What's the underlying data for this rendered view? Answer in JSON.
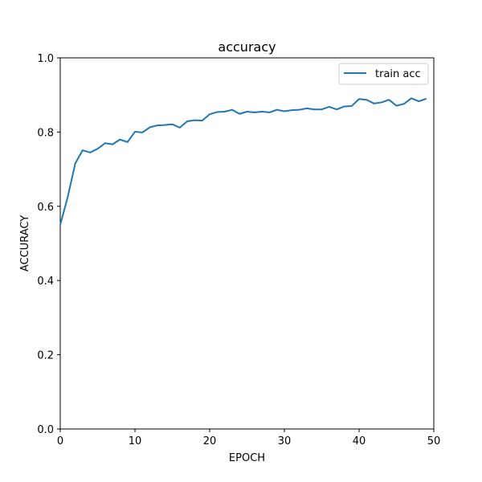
{
  "chart_data": {
    "type": "line",
    "title": "accuracy",
    "xlabel": "EPOCH",
    "ylabel": "ACCURACY",
    "xlim": [
      0,
      50
    ],
    "ylim": [
      0.0,
      1.0
    ],
    "xticks": [
      0,
      10,
      20,
      30,
      40,
      50
    ],
    "xtick_labels": [
      "0",
      "10",
      "20",
      "30",
      "40",
      "50"
    ],
    "yticks": [
      0.0,
      0.2,
      0.4,
      0.6,
      0.8,
      1.0
    ],
    "ytick_labels": [
      "0.0",
      "0.2",
      "0.4",
      "0.6",
      "0.8",
      "1.0"
    ],
    "grid": false,
    "legend_position": "top-right",
    "series": [
      {
        "name": "train acc",
        "color": "#1f77b4",
        "x": [
          0,
          1,
          2,
          3,
          4,
          5,
          6,
          7,
          8,
          9,
          10,
          11,
          12,
          13,
          14,
          15,
          16,
          17,
          18,
          19,
          20,
          21,
          22,
          23,
          24,
          25,
          26,
          27,
          28,
          29,
          30,
          31,
          32,
          33,
          34,
          35,
          36,
          37,
          38,
          39,
          40,
          41,
          42,
          43,
          44,
          45,
          46,
          47,
          48,
          49
        ],
        "y": [
          0.55,
          0.625,
          0.715,
          0.751,
          0.745,
          0.755,
          0.77,
          0.767,
          0.78,
          0.773,
          0.801,
          0.799,
          0.813,
          0.818,
          0.819,
          0.821,
          0.812,
          0.829,
          0.832,
          0.831,
          0.848,
          0.854,
          0.855,
          0.86,
          0.849,
          0.855,
          0.853,
          0.855,
          0.853,
          0.86,
          0.856,
          0.859,
          0.86,
          0.864,
          0.861,
          0.861,
          0.868,
          0.861,
          0.869,
          0.87,
          0.889,
          0.887,
          0.877,
          0.88,
          0.887,
          0.871,
          0.876,
          0.891,
          0.883,
          0.89
        ]
      }
    ]
  }
}
